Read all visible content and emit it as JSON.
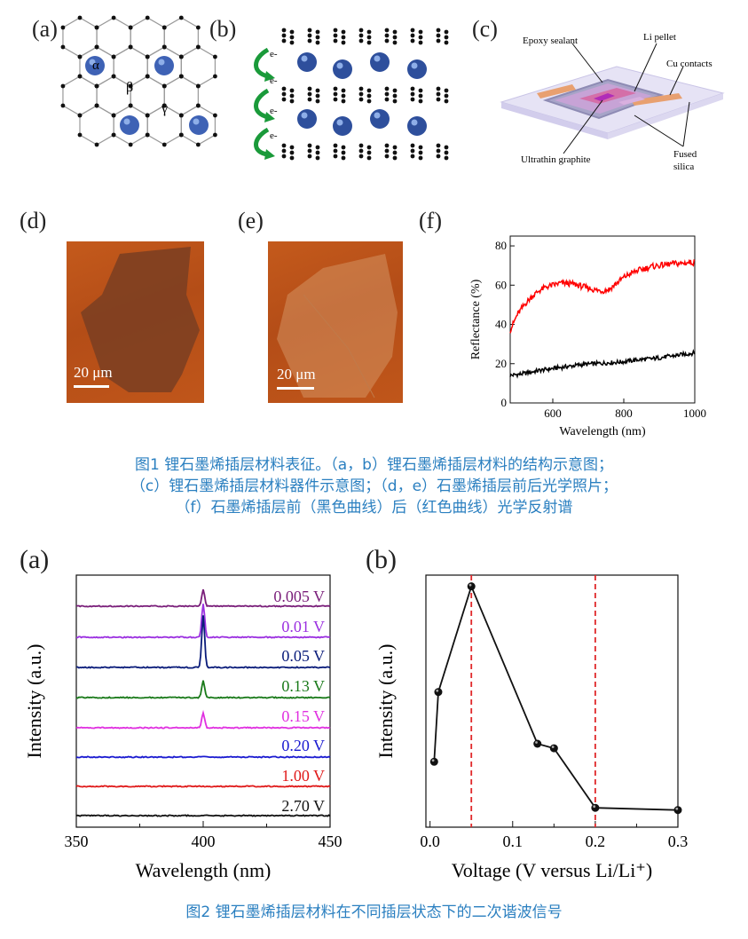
{
  "fig1": {
    "panel_labels": {
      "a": "(a)",
      "b": "(b)",
      "c": "(c)",
      "d": "(d)",
      "e": "(e)",
      "f": "(f)"
    },
    "a_labels": {
      "alpha": "α",
      "beta": "β",
      "gamma": "γ"
    },
    "b_labels": {
      "electron": "e-"
    },
    "c_labels": {
      "epoxy": "Epoxy sealant",
      "li": "Li pellet",
      "cu": "Cu contacts",
      "graphite": "Ultrathin graphite",
      "fused_1": "Fused",
      "fused_2": "silica"
    },
    "scale_d": "20 μm",
    "scale_e": "20 μm",
    "caption": [
      "图1 锂石墨烯插层材料表征。（a，b）锂石墨烯插层材料的结构示意图；",
      "（c）锂石墨烯插层材料器件示意图；（d，e）石墨烯插层前后光学照片；",
      "（f）石墨烯插层前（黑色曲线）后（红色曲线）光学反射谱"
    ]
  },
  "fig2": {
    "panel_labels": {
      "a": "(a)",
      "b": "(b)"
    },
    "caption": "图2 锂石墨烯插层材料在不同插层状态下的二次谐波信号"
  },
  "chart_data": [
    {
      "type": "line",
      "panel": "1f",
      "xlabel": "Wavelength (nm)",
      "ylabel": "Reflectance (%)",
      "xlim": [
        480,
        1000
      ],
      "ylim": [
        0,
        85
      ],
      "xticks": [
        600,
        800,
        1000
      ],
      "yticks": [
        0,
        20,
        40,
        60,
        80
      ],
      "series": [
        {
          "color": "#000000",
          "x": [
            480,
            520,
            560,
            600,
            640,
            680,
            720,
            760,
            800,
            840,
            880,
            920,
            960,
            1000
          ],
          "y": [
            14,
            15,
            16.5,
            17.5,
            18.5,
            19.5,
            20,
            20.5,
            21,
            22,
            22.5,
            23.5,
            24.5,
            25.5
          ]
        },
        {
          "color": "#ff0000",
          "x": [
            480,
            500,
            520,
            540,
            560,
            580,
            600,
            620,
            640,
            660,
            680,
            700,
            720,
            740,
            760,
            780,
            800,
            820,
            840,
            860,
            880,
            900,
            920,
            940,
            960,
            980,
            1000
          ],
          "y": [
            37,
            45,
            50,
            54,
            57,
            59,
            60,
            61,
            61,
            60.5,
            59.5,
            58.5,
            57.5,
            57,
            58,
            61,
            64,
            66,
            67.5,
            68.5,
            69.5,
            70,
            70.5,
            71,
            71,
            71.5,
            71.5
          ]
        }
      ]
    },
    {
      "type": "line",
      "panel": "2a",
      "xlabel": "Wavelength (nm)",
      "ylabel": "Intensity (a.u.)",
      "xlim": [
        350,
        450
      ],
      "xticks": [
        350,
        400,
        450
      ],
      "peak_x": 400,
      "series": [
        {
          "name": "0.005 V",
          "color": "#7a1f7a",
          "peak": 0.5
        },
        {
          "name": "0.01 V",
          "color": "#9b30e0",
          "peak": 1.0
        },
        {
          "name": "0.05 V",
          "color": "#0a1c7a",
          "peak": 1.55
        },
        {
          "name": "0.13 V",
          "color": "#1a7a1a",
          "peak": 0.5
        },
        {
          "name": "0.15 V",
          "color": "#e030e0",
          "peak": 0.45
        },
        {
          "name": "0.20 V",
          "color": "#1a1ad0",
          "peak": 0.0
        },
        {
          "name": "1.00 V",
          "color": "#e01a1a",
          "peak": 0.0
        },
        {
          "name": "2.70 V",
          "color": "#111111",
          "peak": 0.0
        }
      ]
    },
    {
      "type": "scatter",
      "panel": "2b",
      "xlabel": "Voltage (V versus Li/Li⁺)",
      "ylabel": "Intensity (a.u.)",
      "xlim": [
        -0.005,
        0.3
      ],
      "ylim": [
        0,
        1.05
      ],
      "xticks": [
        0.0,
        0.1,
        0.2,
        0.3
      ],
      "xtick_labels": [
        "0.0",
        "0.1",
        "0.2",
        "0.3"
      ],
      "x": [
        0.005,
        0.01,
        0.05,
        0.13,
        0.15,
        0.2,
        0.3
      ],
      "y": [
        0.22,
        0.53,
        1.0,
        0.3,
        0.28,
        0.015,
        0.005
      ],
      "vlines": [
        0.05,
        0.2
      ]
    }
  ]
}
